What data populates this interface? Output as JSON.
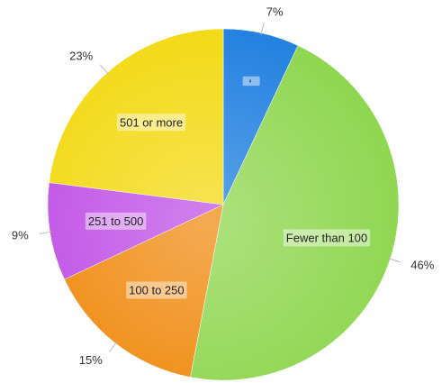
{
  "chart_data": {
    "type": "pie",
    "start": "top",
    "direction": "clockwise",
    "slices": [
      {
        "label": "-",
        "value": 7,
        "pct_label": "7%",
        "color": "#1f7fe0"
      },
      {
        "label": "Fewer than 100",
        "value": 46,
        "pct_label": "46%",
        "color": "#8ed64e"
      },
      {
        "label": "100 to 250",
        "value": 15,
        "pct_label": "15%",
        "color": "#f08a10"
      },
      {
        "label": "251 to 500",
        "value": 9,
        "pct_label": "9%",
        "color": "#bf4fe6"
      },
      {
        "label": "501 or more",
        "value": 23,
        "pct_label": "23%",
        "color": "#f3d912"
      }
    ]
  }
}
